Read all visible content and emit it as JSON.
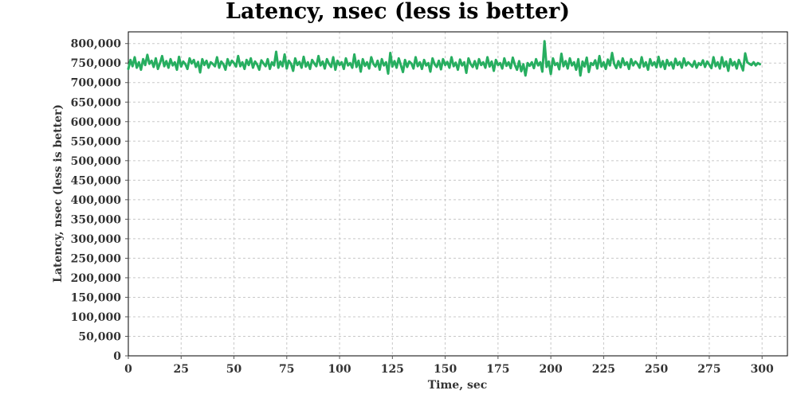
{
  "chart_data": {
    "type": "line",
    "title": "Latency, nsec (less is better)",
    "xlabel": "Time, sec",
    "ylabel": "Latency, nsec (less is better)",
    "xlim": [
      0,
      312
    ],
    "ylim": [
      0,
      830000
    ],
    "xticks": [
      0,
      25,
      50,
      75,
      100,
      125,
      150,
      175,
      200,
      225,
      250,
      275,
      300
    ],
    "yticks": [
      0,
      50000,
      100000,
      150000,
      200000,
      250000,
      300000,
      350000,
      400000,
      450000,
      500000,
      550000,
      600000,
      650000,
      700000,
      750000,
      800000
    ],
    "xtick_labels": [
      "0",
      "25",
      "50",
      "75",
      "100",
      "125",
      "150",
      "175",
      "200",
      "225",
      "250",
      "275",
      "300"
    ],
    "ytick_labels": [
      "0",
      "50,000",
      "100,000",
      "150,000",
      "200,000",
      "250,000",
      "300,000",
      "350,000",
      "400,000",
      "450,000",
      "500,000",
      "550,000",
      "600,000",
      "650,000",
      "700,000",
      "750,000",
      "800,000"
    ],
    "grid": true,
    "legend": "none",
    "colors": {
      "series": "#27ae60",
      "grid": "#c8c8c8",
      "axis": "#000000"
    },
    "series": [
      {
        "x": [
          0,
          1,
          2,
          3,
          4,
          5,
          6,
          7,
          8,
          9,
          10,
          11,
          12,
          13,
          14,
          15,
          16,
          17,
          18,
          19,
          20,
          21,
          22,
          23,
          24,
          25,
          26,
          27,
          28,
          29,
          30,
          31,
          32,
          33,
          34,
          35,
          36,
          37,
          38,
          39,
          40,
          41,
          42,
          43,
          44,
          45,
          46,
          47,
          48,
          49,
          50,
          51,
          52,
          53,
          54,
          55,
          56,
          57,
          58,
          59,
          60,
          61,
          62,
          63,
          64,
          65,
          66,
          67,
          68,
          69,
          70,
          71,
          72,
          73,
          74,
          75,
          76,
          77,
          78,
          79,
          80,
          81,
          82,
          83,
          84,
          85,
          86,
          87,
          88,
          89,
          90,
          91,
          92,
          93,
          94,
          95,
          96,
          97,
          98,
          99,
          100,
          101,
          102,
          103,
          104,
          105,
          106,
          107,
          108,
          109,
          110,
          111,
          112,
          113,
          114,
          115,
          116,
          117,
          118,
          119,
          120,
          121,
          122,
          123,
          124,
          125,
          126,
          127,
          128,
          129,
          130,
          131,
          132,
          133,
          134,
          135,
          136,
          137,
          138,
          139,
          140,
          141,
          142,
          143,
          144,
          145,
          146,
          147,
          148,
          149,
          150,
          151,
          152,
          153,
          154,
          155,
          156,
          157,
          158,
          159,
          160,
          161,
          162,
          163,
          164,
          165,
          166,
          167,
          168,
          169,
          170,
          171,
          172,
          173,
          174,
          175,
          176,
          177,
          178,
          179,
          180,
          181,
          182,
          183,
          184,
          185,
          186,
          187,
          188,
          189,
          190,
          191,
          192,
          193,
          194,
          195,
          196,
          197,
          198,
          199,
          200,
          201,
          202,
          203,
          204,
          205,
          206,
          207,
          208,
          209,
          210,
          211,
          212,
          213,
          214,
          215,
          216,
          217,
          218,
          219,
          220,
          221,
          222,
          223,
          224,
          225,
          226,
          227,
          228,
          229,
          230,
          231,
          232,
          233,
          234,
          235,
          236,
          237,
          238,
          239,
          240,
          241,
          242,
          243,
          244,
          245,
          246,
          247,
          248,
          249,
          250,
          251,
          252,
          253,
          254,
          255,
          256,
          257,
          258,
          259,
          260,
          261,
          262,
          263,
          264,
          265,
          266,
          267,
          268,
          269,
          270,
          271,
          272,
          273,
          274,
          275,
          276,
          277,
          278,
          279,
          280,
          281,
          282,
          283,
          284,
          285,
          286,
          287,
          288,
          289,
          290,
          291,
          292,
          293,
          294,
          295,
          296,
          297,
          298,
          299
        ],
        "values": [
          735000,
          758000,
          742000,
          765000,
          738000,
          752000,
          733000,
          760000,
          745000,
          771000,
          748000,
          756000,
          740000,
          762000,
          735000,
          750000,
          768000,
          742000,
          755000,
          738000,
          760000,
          744000,
          752000,
          733000,
          766000,
          741000,
          754000,
          747000,
          735000,
          762000,
          749000,
          758000,
          740000,
          753000,
          726000,
          760000,
          745000,
          756000,
          738000,
          752000,
          748000,
          742000,
          765000,
          738000,
          754000,
          747000,
          733000,
          760000,
          744000,
          756000,
          750000,
          741000,
          768000,
          742000,
          752000,
          735000,
          758000,
          745000,
          762000,
          738000,
          754000,
          746000,
          733000,
          757000,
          749000,
          742000,
          760000,
          735000,
          752000,
          744000,
          779000,
          738000,
          754000,
          742000,
          772000,
          736000,
          756000,
          748000,
          730000,
          762000,
          745000,
          753000,
          738000,
          766000,
          741000,
          752000,
          735000,
          758000,
          749000,
          742000,
          768000,
          744000,
          754000,
          736000,
          760000,
          748000,
          740000,
          765000,
          733000,
          756000,
          745000,
          752000,
          735000,
          762000,
          744000,
          750000,
          738000,
          772000,
          740000,
          756000,
          728000,
          760000,
          743000,
          752000,
          736000,
          765000,
          748000,
          741000,
          756000,
          733000,
          760000,
          744000,
          752000,
          723000,
          776000,
          741000,
          755000,
          738000,
          762000,
          745000,
          727000,
          758000,
          740000,
          754000,
          749000,
          736000,
          765000,
          742000,
          752000,
          735000,
          758000,
          744000,
          750000,
          728000,
          762000,
          747000,
          740000,
          756000,
          734000,
          760000,
          745000,
          753000,
          738000,
          765000,
          742000,
          751000,
          733000,
          759000,
          744000,
          752000,
          725000,
          762000,
          748000,
          740000,
          755000,
          736000,
          760000,
          745000,
          752000,
          738000,
          765000,
          741000,
          754000,
          730000,
          758000,
          745000,
          750000,
          736000,
          762000,
          743000,
          752000,
          737000,
          764000,
          745000,
          733000,
          755000,
          729000,
          747000,
          718000,
          750000,
          743000,
          752000,
          737000,
          760000,
          744000,
          752000,
          728000,
          806000,
          740000,
          754000,
          722000,
          762000,
          745000,
          750000,
          734000,
          774000,
          742000,
          755000,
          736000,
          762000,
          744000,
          752000,
          733000,
          760000,
          718000,
          754000,
          741000,
          764000,
          727000,
          750000,
          745000,
          757000,
          736000,
          768000,
          741000,
          752000,
          735000,
          759000,
          744000,
          776000,
          748000,
          737000,
          755000,
          739000,
          762000,
          745000,
          752000,
          735000,
          760000,
          744000,
          754000,
          748000,
          738000,
          765000,
          741000,
          752000,
          733000,
          760000,
          744000,
          752000,
          739000,
          766000,
          740000,
          755000,
          735000,
          758000,
          744000,
          752000,
          736000,
          761000,
          745000,
          753000,
          738000,
          762000,
          744000,
          752000,
          747000,
          741000,
          755000,
          738000,
          750000,
          745000,
          757000,
          740000,
          754000,
          746000,
          737000,
          765000,
          742000,
          752000,
          736000,
          765000,
          741000,
          754000,
          730000,
          760000,
          744000,
          753000,
          736000,
          758000,
          745000,
          731000,
          775000,
          752000,
          748000,
          745000,
          752000,
          744000,
          750000,
          747000
        ]
      }
    ]
  }
}
